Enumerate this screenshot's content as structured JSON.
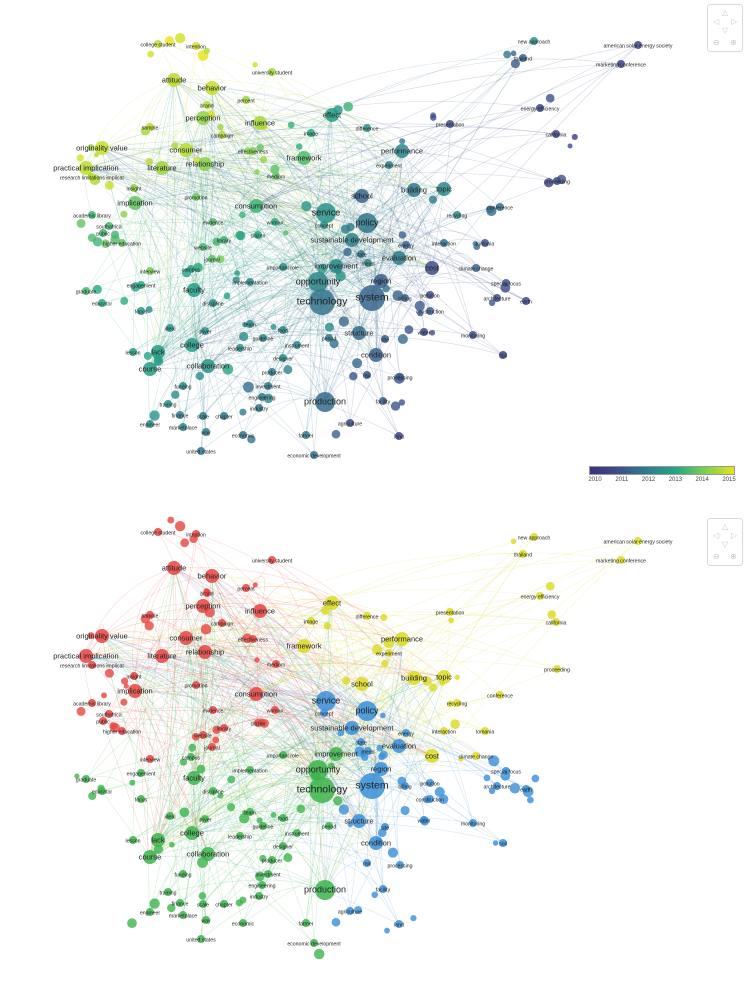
{
  "views": [
    {
      "id": "overlay",
      "caption": ""
    },
    {
      "id": "network",
      "caption": ""
    }
  ],
  "legend": {
    "ticks": [
      "2010",
      "2011",
      "2012",
      "2013",
      "2014",
      "2015"
    ],
    "colors": [
      "#3b2f7f",
      "#3e4f8c",
      "#2f7d8d",
      "#23a883",
      "#7ccf4f",
      "#e6e419"
    ]
  },
  "cluster_colors": {
    "red": "#e8433f",
    "green": "#3cb44b",
    "blue": "#3a8fd8",
    "yellow": "#dada22"
  },
  "nav_icons": [
    "arrow-up-icon",
    "arrow-left-icon",
    "arrow-right-icon",
    "arrow-down-icon",
    "zoom-out-icon",
    "zoom-in-icon"
  ],
  "terms": [
    {
      "label": "college student",
      "cluster": "red",
      "year": 2014.6,
      "weight": 1
    },
    {
      "label": "intention",
      "cluster": "red",
      "year": 2014.8,
      "weight": 1
    },
    {
      "label": "university student",
      "cluster": "red",
      "year": 2014.4,
      "weight": 1
    },
    {
      "label": "attitude",
      "cluster": "red",
      "year": 2014.6,
      "weight": 2
    },
    {
      "label": "behavior",
      "cluster": "red",
      "year": 2014.7,
      "weight": 2
    },
    {
      "label": "brand",
      "cluster": "red",
      "year": 2014.5,
      "weight": 1
    },
    {
      "label": "percent",
      "cluster": "red",
      "year": 2014.3,
      "weight": 1
    },
    {
      "label": "perception",
      "cluster": "red",
      "year": 2014.2,
      "weight": 2
    },
    {
      "label": "influence",
      "cluster": "red",
      "year": 2014.4,
      "weight": 2
    },
    {
      "label": "campaign",
      "cluster": "red",
      "year": 2014.5,
      "weight": 1
    },
    {
      "label": "sample",
      "cluster": "red",
      "year": 2014.6,
      "weight": 1
    },
    {
      "label": "originality value",
      "cluster": "red",
      "year": 2014.7,
      "weight": 2
    },
    {
      "label": "consumer",
      "cluster": "red",
      "year": 2014.5,
      "weight": 2
    },
    {
      "label": "effectiveness",
      "cluster": "red",
      "year": 2014.0,
      "weight": 1
    },
    {
      "label": "relationship",
      "cluster": "red",
      "year": 2014.1,
      "weight": 2
    },
    {
      "label": "practical implication",
      "cluster": "red",
      "year": 2014.6,
      "weight": 2
    },
    {
      "label": "research limitations implicat",
      "cluster": "red",
      "year": 2014.6,
      "weight": 1
    },
    {
      "label": "literature",
      "cluster": "red",
      "year": 2014.3,
      "weight": 2
    },
    {
      "label": "medium",
      "cluster": "red",
      "year": 2013.8,
      "weight": 1
    },
    {
      "label": "insight",
      "cluster": "red",
      "year": 2014.2,
      "weight": 1
    },
    {
      "label": "promotion",
      "cluster": "red",
      "year": 2013.8,
      "weight": 1
    },
    {
      "label": "implication",
      "cluster": "red",
      "year": 2013.7,
      "weight": 2
    },
    {
      "label": "consumption",
      "cluster": "red",
      "year": 2013.3,
      "weight": 2
    },
    {
      "label": "academic library",
      "cluster": "red",
      "year": 2013.3,
      "weight": 1
    },
    {
      "label": "southafrica",
      "cluster": "red",
      "year": 2013.4,
      "weight": 1
    },
    {
      "label": "public",
      "cluster": "red",
      "year": 2013.3,
      "weight": 1
    },
    {
      "label": "evidence",
      "cluster": "red",
      "year": 2013.5,
      "weight": 1
    },
    {
      "label": "woman",
      "cluster": "red",
      "year": 2013.1,
      "weight": 1
    },
    {
      "label": "higher education",
      "cluster": "red",
      "year": 2013.7,
      "weight": 1
    },
    {
      "label": "website",
      "cluster": "red",
      "year": 2013.4,
      "weight": 1
    },
    {
      "label": "library",
      "cluster": "red",
      "year": 2013.3,
      "weight": 1
    },
    {
      "label": "citizen",
      "cluster": "red",
      "year": 2013.0,
      "weight": 1
    },
    {
      "label": "journal",
      "cluster": "red",
      "year": 2013.6,
      "weight": 1
    },
    {
      "label": "interview",
      "cluster": "red",
      "year": 2013.9,
      "weight": 1
    },
    {
      "label": "framework",
      "cluster": "yellow",
      "year": 2013.5,
      "weight": 2
    },
    {
      "label": "effect",
      "cluster": "yellow",
      "year": 2012.8,
      "weight": 2
    },
    {
      "label": "image",
      "cluster": "yellow",
      "year": 2013.0,
      "weight": 1
    },
    {
      "label": "difference",
      "cluster": "yellow",
      "year": 2012.5,
      "weight": 1
    },
    {
      "label": "presentation",
      "cluster": "yellow",
      "year": 2011.0,
      "weight": 1
    },
    {
      "label": "performance",
      "cluster": "yellow",
      "year": 2012.2,
      "weight": 2
    },
    {
      "label": "experiment",
      "cluster": "yellow",
      "year": 2012.0,
      "weight": 1
    },
    {
      "label": "new approach",
      "cluster": "yellow",
      "year": 2012.5,
      "weight": 1
    },
    {
      "label": "thailand",
      "cluster": "yellow",
      "year": 2011.5,
      "weight": 1
    },
    {
      "label": "american solar energy society",
      "cluster": "yellow",
      "year": 2010.7,
      "weight": 1
    },
    {
      "label": "marketing conference",
      "cluster": "yellow",
      "year": 2010.6,
      "weight": 1
    },
    {
      "label": "energy efficiency",
      "cluster": "yellow",
      "year": 2010.8,
      "weight": 1
    },
    {
      "label": "california",
      "cluster": "yellow",
      "year": 2010.6,
      "weight": 1
    },
    {
      "label": "proceeding",
      "cluster": "yellow",
      "year": 2010.9,
      "weight": 1
    },
    {
      "label": "school",
      "cluster": "yellow",
      "year": 2011.4,
      "weight": 2
    },
    {
      "label": "building",
      "cluster": "yellow",
      "year": 2011.8,
      "weight": 2
    },
    {
      "label": "topic",
      "cluster": "yellow",
      "year": 2012.3,
      "weight": 2
    },
    {
      "label": "conference",
      "cluster": "yellow",
      "year": 2011.8,
      "weight": 1
    },
    {
      "label": "recycling",
      "cluster": "yellow",
      "year": 2012.2,
      "weight": 1
    },
    {
      "label": "tomania",
      "cluster": "yellow",
      "year": 2011.2,
      "weight": 1
    },
    {
      "label": "interaction",
      "cluster": "yellow",
      "year": 2011.7,
      "weight": 1
    },
    {
      "label": "cost",
      "cluster": "yellow",
      "year": 2011.0,
      "weight": 2
    },
    {
      "label": "climate change",
      "cluster": "yellow",
      "year": 2011.5,
      "weight": 1
    },
    {
      "label": "policy",
      "cluster": "blue",
      "year": 2011.9,
      "weight": 3
    },
    {
      "label": "service",
      "cluster": "blue",
      "year": 2012.5,
      "weight": 3
    },
    {
      "label": "concept",
      "cluster": "blue",
      "year": 2012.4,
      "weight": 1
    },
    {
      "label": "sustainable development",
      "cluster": "blue",
      "year": 2012.1,
      "weight": 2
    },
    {
      "label": "state",
      "cluster": "blue",
      "year": 2012.0,
      "weight": 1
    },
    {
      "label": "energy",
      "cluster": "blue",
      "year": 2011.4,
      "weight": 1
    },
    {
      "label": "mean",
      "cluster": "blue",
      "year": 2012.1,
      "weight": 1
    },
    {
      "label": "evaluation",
      "cluster": "blue",
      "year": 2012.0,
      "weight": 2
    },
    {
      "label": "improvement",
      "cluster": "green",
      "year": 2012.3,
      "weight": 2
    },
    {
      "label": "region",
      "cluster": "blue",
      "year": 2011.3,
      "weight": 2
    },
    {
      "label": "system",
      "cluster": "blue",
      "year": 2011.5,
      "weight": 4
    },
    {
      "label": "billing",
      "cluster": "blue",
      "year": 2011.5,
      "weight": 1
    },
    {
      "label": "pollution",
      "cluster": "blue",
      "year": 2011.0,
      "weight": 1
    },
    {
      "label": "special focus",
      "cluster": "blue",
      "year": 2011.2,
      "weight": 1
    },
    {
      "label": "architecture",
      "cluster": "blue",
      "year": 2011.0,
      "weight": 1
    },
    {
      "label": "earth",
      "cluster": "blue",
      "year": 2010.8,
      "weight": 1
    },
    {
      "label": "construction",
      "cluster": "blue",
      "year": 2011.3,
      "weight": 1
    },
    {
      "label": "water",
      "cluster": "blue",
      "year": 2010.9,
      "weight": 1
    },
    {
      "label": "monitoring",
      "cluster": "blue",
      "year": 2011.0,
      "weight": 1
    },
    {
      "label": "structure",
      "cluster": "blue",
      "year": 2011.6,
      "weight": 2
    },
    {
      "label": "site",
      "cluster": "blue",
      "year": 2011.4,
      "weight": 1
    },
    {
      "label": "condition",
      "cluster": "blue",
      "year": 2011.4,
      "weight": 2
    },
    {
      "label": "soil",
      "cluster": "blue",
      "year": 2010.6,
      "weight": 1
    },
    {
      "label": "risk",
      "cluster": "blue",
      "year": 2011.2,
      "weight": 1
    },
    {
      "label": "processing",
      "cluster": "blue",
      "year": 2011.3,
      "weight": 1
    },
    {
      "label": "facility",
      "cluster": "blue",
      "year": 2011.4,
      "weight": 1
    },
    {
      "label": "agriculture",
      "cluster": "blue",
      "year": 2011.0,
      "weight": 1
    },
    {
      "label": "land",
      "cluster": "blue",
      "year": 2010.7,
      "weight": 1
    },
    {
      "label": "technology",
      "cluster": "green",
      "year": 2011.8,
      "weight": 4
    },
    {
      "label": "opportunity",
      "cluster": "green",
      "year": 2012.2,
      "weight": 3
    },
    {
      "label": "important role",
      "cluster": "green",
      "year": 2012.4,
      "weight": 1
    },
    {
      "label": "implementation",
      "cluster": "green",
      "year": 2012.3,
      "weight": 1
    },
    {
      "label": "campus",
      "cluster": "green",
      "year": 2012.8,
      "weight": 1
    },
    {
      "label": "engagement",
      "cluster": "green",
      "year": 2013.0,
      "weight": 1
    },
    {
      "label": "graduate",
      "cluster": "green",
      "year": 2013.4,
      "weight": 1
    },
    {
      "label": "educator",
      "cluster": "green",
      "year": 2013.0,
      "weight": 1
    },
    {
      "label": "faculty",
      "cluster": "green",
      "year": 2012.8,
      "weight": 2
    },
    {
      "label": "discipline",
      "cluster": "green",
      "year": 2012.5,
      "weight": 1
    },
    {
      "label": "focus",
      "cluster": "green",
      "year": 2012.6,
      "weight": 1
    },
    {
      "label": "ideal",
      "cluster": "green",
      "year": 2012.7,
      "weight": 1
    },
    {
      "label": "driver",
      "cluster": "green",
      "year": 2012.4,
      "weight": 1
    },
    {
      "label": "food",
      "cluster": "green",
      "year": 2012.2,
      "weight": 1
    },
    {
      "label": "team",
      "cluster": "green",
      "year": 2012.3,
      "weight": 1
    },
    {
      "label": "guideline",
      "cluster": "green",
      "year": 2012.3,
      "weight": 1
    },
    {
      "label": "college",
      "cluster": "green",
      "year": 2012.7,
      "weight": 2
    },
    {
      "label": "leadership",
      "cluster": "green",
      "year": 2012.5,
      "weight": 1
    },
    {
      "label": "instrument",
      "cluster": "green",
      "year": 2012.2,
      "weight": 1
    },
    {
      "label": "designer",
      "cluster": "green",
      "year": 2012.4,
      "weight": 1
    },
    {
      "label": "period",
      "cluster": "green",
      "year": 2012.0,
      "weight": 1
    },
    {
      "label": "lack",
      "cluster": "green",
      "year": 2012.8,
      "weight": 2
    },
    {
      "label": "lesson",
      "cluster": "green",
      "year": 2012.8,
      "weight": 1
    },
    {
      "label": "collaboration",
      "cluster": "green",
      "year": 2012.5,
      "weight": 2
    },
    {
      "label": "producer",
      "cluster": "green",
      "year": 2012.0,
      "weight": 1
    },
    {
      "label": "course",
      "cluster": "green",
      "year": 2012.8,
      "weight": 2
    },
    {
      "label": "funding",
      "cluster": "green",
      "year": 2012.4,
      "weight": 1
    },
    {
      "label": "investment",
      "cluster": "green",
      "year": 2012.0,
      "weight": 1
    },
    {
      "label": "engineering",
      "cluster": "green",
      "year": 2012.0,
      "weight": 1
    },
    {
      "label": "training",
      "cluster": "green",
      "year": 2012.5,
      "weight": 1
    },
    {
      "label": "industry",
      "cluster": "green",
      "year": 2011.9,
      "weight": 1
    },
    {
      "label": "production",
      "cluster": "green",
      "year": 2011.6,
      "weight": 3
    },
    {
      "label": "finance",
      "cluster": "green",
      "year": 2012.0,
      "weight": 1
    },
    {
      "label": "scale",
      "cluster": "green",
      "year": 2012.0,
      "weight": 1
    },
    {
      "label": "chapter",
      "cluster": "green",
      "year": 2012.0,
      "weight": 1
    },
    {
      "label": "engineer",
      "cluster": "green",
      "year": 2012.3,
      "weight": 1
    },
    {
      "label": "marketplace",
      "cluster": "green",
      "year": 2012.2,
      "weight": 1
    },
    {
      "label": "way",
      "cluster": "green",
      "year": 2012.0,
      "weight": 1
    },
    {
      "label": "economic",
      "cluster": "green",
      "year": 2011.8,
      "weight": 1
    },
    {
      "label": "farmer",
      "cluster": "green",
      "year": 2012.0,
      "weight": 1
    },
    {
      "label": "united states",
      "cluster": "green",
      "year": 2011.9,
      "weight": 1
    },
    {
      "label": "economic development",
      "cluster": "green",
      "year": 2011.8,
      "weight": 1
    }
  ]
}
